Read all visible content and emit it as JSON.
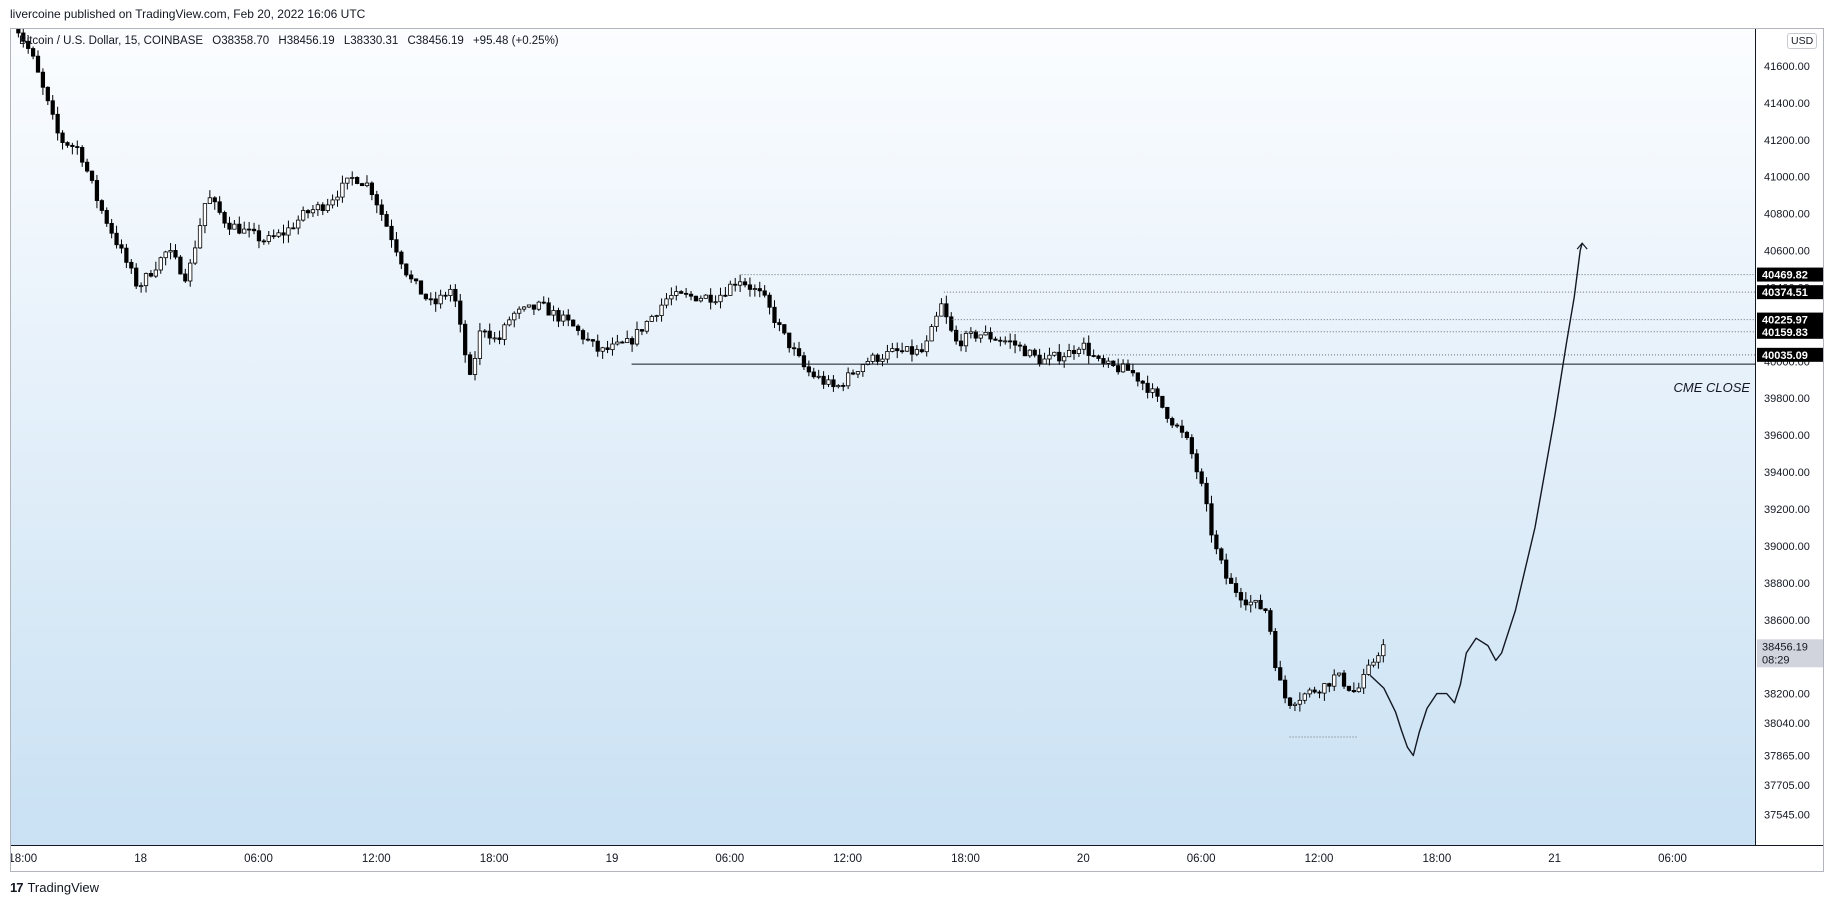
{
  "header": {
    "publisher": "livercoine published on TradingView.com, Feb 20, 2022 16:06 UTC"
  },
  "legend": {
    "symbol": "Bitcoin / U.S. Dollar, 15, COINBASE",
    "open": "O38358.70",
    "high": "H38456.19",
    "low": "L38330.31",
    "close": "C38456.19",
    "change": "+95.48 (+0.25%)"
  },
  "currency": "USD",
  "footer": {
    "logo": "17",
    "brand": "TradingView"
  },
  "colors": {
    "candle_up": "#ffffff",
    "candle_down": "#000000",
    "candle_outline": "#000000",
    "label_bg": "#000000",
    "label_text": "#ffffff",
    "current_price_bg": "#d1d4dc"
  },
  "chart_data": {
    "type": "candlestick",
    "y_axis": {
      "range": [
        37380,
        41800
      ],
      "tick_labels": [
        "41600.00",
        "41400.00",
        "41200.00",
        "41000.00",
        "40800.00",
        "40600.00",
        "40400.00",
        "40200.00",
        "40000.00",
        "39800.00",
        "39600.00",
        "39400.00",
        "39200.00",
        "39000.00",
        "38800.00",
        "38600.00",
        "38400.00",
        "38200.00",
        "38040.00",
        "37865.00",
        "37705.00",
        "37545.00"
      ],
      "tick_values": [
        41600,
        41400,
        41200,
        41000,
        40800,
        40600,
        40400,
        40200,
        40000,
        39800,
        39600,
        39400,
        39200,
        39000,
        38800,
        38600,
        38400,
        38200,
        38040,
        37865,
        37705,
        37545
      ]
    },
    "x_axis": {
      "tick_labels": [
        "18:00",
        "18",
        "06:00",
        "12:00",
        "18:00",
        "19",
        "06:00",
        "12:00",
        "18:00",
        "20",
        "06:00",
        "12:00",
        "18:00",
        "21",
        "06:00"
      ],
      "tick_hours": [
        18,
        24,
        30,
        36,
        42,
        48,
        54,
        60,
        66,
        72,
        78,
        84,
        90,
        96,
        102
      ]
    },
    "visible_window_hours": [
      17.4,
      106.2
    ],
    "last_bar_hour": 87.3,
    "anchors": [
      [
        17.4,
        41900
      ],
      [
        18.6,
        41650
      ],
      [
        20.0,
        41200
      ],
      [
        21.0,
        41150
      ],
      [
        22.0,
        40850
      ],
      [
        24.0,
        40400
      ],
      [
        25.5,
        40600
      ],
      [
        26.5,
        40450
      ],
      [
        27.5,
        40900
      ],
      [
        28.5,
        40750
      ],
      [
        30.5,
        40650
      ],
      [
        31.5,
        40700
      ],
      [
        32.5,
        40800
      ],
      [
        33.5,
        40850
      ],
      [
        35.0,
        41000
      ],
      [
        35.8,
        40950
      ],
      [
        36.8,
        40700
      ],
      [
        37.8,
        40450
      ],
      [
        39.0,
        40300
      ],
      [
        40.0,
        40400
      ],
      [
        40.9,
        39900
      ],
      [
        41.5,
        40200
      ],
      [
        42.3,
        40100
      ],
      [
        43.0,
        40250
      ],
      [
        44.5,
        40300
      ],
      [
        46.0,
        40200
      ],
      [
        47.5,
        40050
      ],
      [
        49.0,
        40100
      ],
      [
        51.0,
        40350
      ],
      [
        53.5,
        40350
      ],
      [
        54.6,
        40450
      ],
      [
        55.8,
        40350
      ],
      [
        56.8,
        40150
      ],
      [
        58.0,
        39950
      ],
      [
        59.5,
        39850
      ],
      [
        61.0,
        40000
      ],
      [
        62.5,
        40050
      ],
      [
        64.0,
        40050
      ],
      [
        64.9,
        40300
      ],
      [
        65.6,
        40100
      ],
      [
        66.8,
        40150
      ],
      [
        68.5,
        40100
      ],
      [
        70.0,
        40000
      ],
      [
        71.5,
        40050
      ],
      [
        72.0,
        40100
      ],
      [
        73.0,
        39980
      ],
      [
        74.5,
        39950
      ],
      [
        75.5,
        39850
      ],
      [
        76.5,
        39700
      ],
      [
        77.5,
        39550
      ],
      [
        78.2,
        39300
      ],
      [
        78.8,
        39000
      ],
      [
        79.5,
        38800
      ],
      [
        80.5,
        38700
      ],
      [
        81.5,
        38650
      ],
      [
        82.0,
        38300
      ],
      [
        82.5,
        38150
      ],
      [
        83.5,
        38200
      ],
      [
        84.5,
        38250
      ],
      [
        85.0,
        38300
      ],
      [
        86.0,
        38200
      ],
      [
        87.3,
        38456
      ]
    ],
    "horizontal_levels": [
      {
        "label": "40469.82",
        "value": 40469.82,
        "style": "dotted",
        "from_hour": 54.6
      },
      {
        "label": "40374.51",
        "value": 40374.51,
        "style": "dotted",
        "from_hour": 64.9
      },
      {
        "label": "40225.97",
        "value": 40225.97,
        "style": "dotted",
        "from_hour": 65.3
      },
      {
        "label": "40159.83",
        "value": 40159.83,
        "style": "dotted",
        "from_hour": 65.3
      },
      {
        "label": "40035.09",
        "value": 40035.09,
        "style": "dotted",
        "from_hour": 73.0
      },
      {
        "label": "",
        "value": 39985,
        "style": "solid",
        "from_hour": 49.0
      },
      {
        "label": "",
        "value": 37965,
        "style": "dotted",
        "from_hour": 82.5,
        "to_hour": 86.0
      }
    ],
    "annotations": [
      {
        "text": "CME CLOSE",
        "value": 39860,
        "hour": 104.0
      }
    ],
    "current_price": {
      "label": "38456.19",
      "countdown": "08:29",
      "value": 38456.19
    },
    "projection_path": [
      [
        86.6,
        38300
      ],
      [
        87.3,
        38230
      ],
      [
        87.9,
        38100
      ],
      [
        88.2,
        38000
      ],
      [
        88.5,
        37910
      ],
      [
        88.8,
        37865
      ],
      [
        89.1,
        37990
      ],
      [
        89.5,
        38120
      ],
      [
        90.0,
        38200
      ],
      [
        90.5,
        38200
      ],
      [
        90.9,
        38150
      ],
      [
        91.2,
        38250
      ],
      [
        91.5,
        38420
      ],
      [
        92.0,
        38500
      ],
      [
        92.6,
        38460
      ],
      [
        93.0,
        38380
      ],
      [
        93.3,
        38420
      ],
      [
        94.0,
        38650
      ],
      [
        95.0,
        39100
      ],
      [
        96.0,
        39700
      ],
      [
        96.6,
        40100
      ],
      [
        97.0,
        40350
      ],
      [
        97.3,
        40600
      ],
      [
        97.4,
        40640
      ]
    ],
    "grid": false,
    "legend_position": "top-left"
  }
}
